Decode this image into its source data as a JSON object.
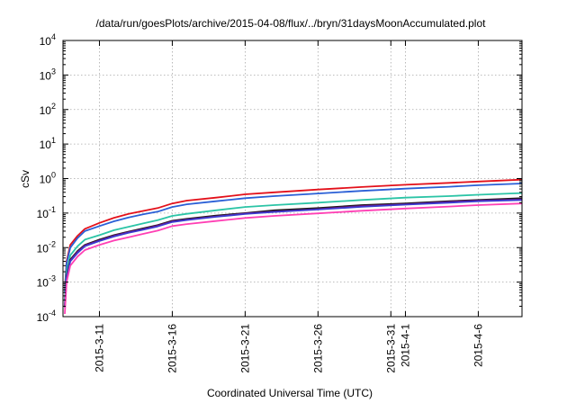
{
  "chart_data": {
    "type": "line",
    "title": "/data/run/goesPlots/archive/2015-04-08/flux/../bryn/31daysMoonAccumulated.plot",
    "xlabel": "Coordinated Universal Time (UTC)",
    "ylabel": "cSv",
    "x_range_days": [
      "2015-03-08T12:00",
      "2015-04-09T00:00"
    ],
    "ylim": [
      0.0001,
      10000
    ],
    "y_scale": "log",
    "grid": true,
    "legend": "none",
    "x_ticks": [
      {
        "date": "2015-03-11T00:00",
        "labels": [
          "2015-3-11"
        ]
      },
      {
        "date": "2015-03-16T00:00",
        "labels": [
          "2015-3-16"
        ]
      },
      {
        "date": "2015-03-21T00:00",
        "labels": [
          "2015-3-21"
        ]
      },
      {
        "date": "2015-03-26T00:00",
        "labels": [
          "2015-3-26"
        ]
      },
      {
        "date": "2015-03-31T00:00",
        "labels": [
          "2015-3-31"
        ]
      },
      {
        "date": "2015-04-01T00:00",
        "labels": [
          "2015-4-1"
        ]
      },
      {
        "date": "2015-04-06T00:00",
        "labels": [
          "2015-4-6"
        ]
      }
    ],
    "y_ticks": [
      {
        "value": 0.0001,
        "base": "10",
        "exp": "-4"
      },
      {
        "value": 0.001,
        "base": "10",
        "exp": "-3"
      },
      {
        "value": 0.01,
        "base": "10",
        "exp": "-2"
      },
      {
        "value": 0.1,
        "base": "10",
        "exp": "-1"
      },
      {
        "value": 1,
        "base": "10",
        "exp": "0"
      },
      {
        "value": 10,
        "base": "10",
        "exp": "1"
      },
      {
        "value": 100,
        "base": "10",
        "exp": "2"
      },
      {
        "value": 1000,
        "base": "10",
        "exp": "3"
      },
      {
        "value": 10000,
        "base": "10",
        "exp": "4"
      }
    ],
    "x": [
      "2015-03-08T15:00",
      "2015-03-08T18:00",
      "2015-03-09T00:00",
      "2015-03-09T12:00",
      "2015-03-10T00:00",
      "2015-03-11T00:00",
      "2015-03-12T00:00",
      "2015-03-13T00:00",
      "2015-03-14T00:00",
      "2015-03-15T00:00",
      "2015-03-16T00:00",
      "2015-03-17T00:00",
      "2015-03-19T00:00",
      "2015-03-21T00:00",
      "2015-03-23T00:00",
      "2015-03-26T00:00",
      "2015-03-29T00:00",
      "2015-04-01T00:00",
      "2015-04-04T00:00",
      "2015-04-06T00:00",
      "2015-04-09T00:00"
    ],
    "series": [
      {
        "color": "#e3101a",
        "values": [
          0.0006,
          0.004,
          0.012,
          0.022,
          0.035,
          0.052,
          0.073,
          0.095,
          0.115,
          0.14,
          0.19,
          0.23,
          0.28,
          0.35,
          0.4,
          0.48,
          0.57,
          0.66,
          0.75,
          0.82,
          0.93
        ]
      },
      {
        "color": "#2a5fd6",
        "values": [
          0.0005,
          0.0035,
          0.01,
          0.019,
          0.03,
          0.042,
          0.058,
          0.075,
          0.092,
          0.11,
          0.15,
          0.18,
          0.22,
          0.27,
          0.31,
          0.37,
          0.44,
          0.51,
          0.58,
          0.64,
          0.72
        ]
      },
      {
        "color": "#2bc4a6",
        "values": [
          0.0003,
          0.002,
          0.006,
          0.011,
          0.017,
          0.023,
          0.032,
          0.04,
          0.05,
          0.062,
          0.083,
          0.095,
          0.12,
          0.15,
          0.17,
          0.2,
          0.24,
          0.28,
          0.31,
          0.34,
          0.38
        ]
      },
      {
        "color": "#1a1a1a",
        "values": [
          0.0002,
          0.0015,
          0.0045,
          0.008,
          0.012,
          0.017,
          0.023,
          0.029,
          0.036,
          0.045,
          0.06,
          0.068,
          0.085,
          0.1,
          0.12,
          0.14,
          0.17,
          0.19,
          0.22,
          0.24,
          0.27
        ]
      },
      {
        "color": "#7a0e7e",
        "values": [
          0.0002,
          0.0014,
          0.0042,
          0.0075,
          0.0115,
          0.016,
          0.022,
          0.028,
          0.034,
          0.043,
          0.057,
          0.065,
          0.08,
          0.097,
          0.11,
          0.13,
          0.16,
          0.18,
          0.21,
          0.23,
          0.25
        ]
      },
      {
        "color": "#3a3ad0",
        "values": [
          0.00018,
          0.0013,
          0.004,
          0.007,
          0.011,
          0.0155,
          0.021,
          0.027,
          0.033,
          0.041,
          0.055,
          0.063,
          0.078,
          0.094,
          0.108,
          0.127,
          0.152,
          0.175,
          0.2,
          0.22,
          0.24
        ]
      },
      {
        "color": "#ff3fb4",
        "values": [
          0.00012,
          0.001,
          0.003,
          0.0055,
          0.0085,
          0.012,
          0.016,
          0.02,
          0.025,
          0.031,
          0.042,
          0.048,
          0.059,
          0.072,
          0.083,
          0.098,
          0.117,
          0.136,
          0.155,
          0.17,
          0.19
        ]
      }
    ]
  }
}
